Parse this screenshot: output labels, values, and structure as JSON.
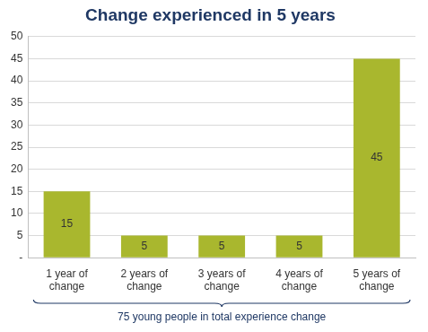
{
  "chart_data": {
    "type": "bar",
    "title": "Change experienced in 5 years",
    "categories": [
      "1 year of change",
      "2 years of change",
      "3 years of change",
      "4 years of change",
      "5 years of change"
    ],
    "values": [
      15,
      5,
      5,
      5,
      45
    ],
    "color": "#a9b72e",
    "ylim": [
      0,
      50
    ],
    "yticks": [
      {
        "value": 0,
        "label": "-"
      },
      5,
      10,
      15,
      20,
      25,
      30,
      35,
      40,
      45,
      50
    ],
    "grid": true,
    "data_labels": true,
    "annotation": "75 young people in total experience change"
  }
}
